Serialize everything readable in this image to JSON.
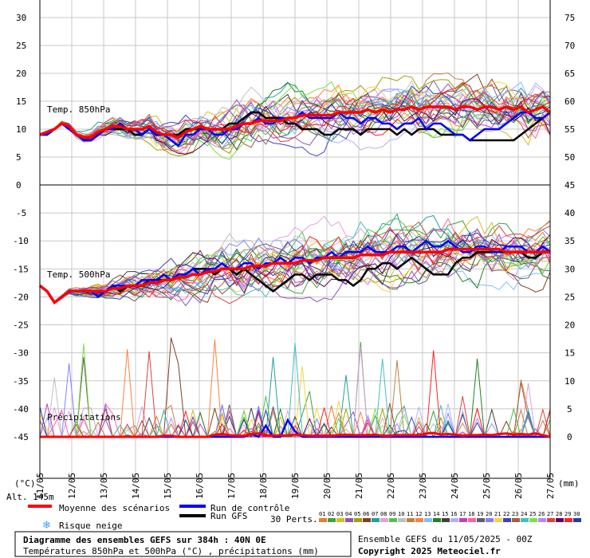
{
  "chart_data": {
    "type": "line",
    "title": "Diagramme des ensembles GEFS sur 384h : 40N 0E",
    "subtitle": "Températures 850hPa et 500hPa (°C) , précipitations (mm)",
    "run_label": "Ensemble GEFS du 11/05/2025 - 00Z",
    "copyright": "Copyright 2025 Meteociel.fr",
    "altitude_label": "Alt. 145m",
    "left_unit": "(°C)",
    "right_unit": "(mm)",
    "panel_labels": {
      "t850": "Temp. 850hPa",
      "t500": "Temp. 500hPa",
      "precip": "Précipitations"
    },
    "x_labels": [
      "11/05",
      "12/05",
      "13/05",
      "14/05",
      "15/05",
      "16/05",
      "17/05",
      "18/05",
      "19/05",
      "20/05",
      "21/05",
      "22/05",
      "23/05",
      "24/05",
      "25/05",
      "26/05",
      "27/05"
    ],
    "top_panel": {
      "left_ticks": [
        30,
        25,
        20,
        15,
        10,
        5,
        0
      ],
      "right_ticks": [
        75,
        70,
        65,
        60,
        55,
        50,
        45
      ],
      "ylim": [
        0,
        30
      ]
    },
    "bottom_panel": {
      "left_ticks": [
        -5,
        -10,
        -15,
        -20,
        -25,
        -30,
        -35,
        -40,
        -45
      ],
      "right_ticks": [
        40,
        35,
        30,
        25,
        20,
        15,
        10,
        5,
        0
      ],
      "ylim_temp": [
        -45,
        0
      ],
      "ylim_precip": [
        0,
        45
      ]
    },
    "legend": {
      "mean": "Moyenne des scénarios",
      "control": "Run de contrôle",
      "gfs": "Run GFS",
      "snow": "Risque neige",
      "perts_label": "30 Perts.",
      "pert_ids": [
        "01",
        "02",
        "03",
        "04",
        "05",
        "06",
        "07",
        "08",
        "09",
        "10",
        "11",
        "12",
        "13",
        "14",
        "15",
        "16",
        "17",
        "18",
        "19",
        "20",
        "21",
        "22",
        "23",
        "24",
        "25",
        "26",
        "27",
        "28",
        "29",
        "30"
      ],
      "pert_colors": [
        "#e08030",
        "#40a040",
        "#d0c020",
        "#9050c0",
        "#a0a000",
        "#804020",
        "#20a0a0",
        "#e0a0e0",
        "#50c050",
        "#c0c0c0",
        "#c08040",
        "#ff8040",
        "#80c0ff",
        "#208020",
        "#404040",
        "#b0b0ff",
        "#c040c0",
        "#ff60a0",
        "#606060",
        "#8080ff",
        "#ffd040",
        "#4040c0",
        "#a06040",
        "#40c0c0",
        "#80e040",
        "#c080ff",
        "#e04040",
        "#600060",
        "#ff2020",
        "#2040a0"
      ],
      "mean_color": "#ff0000",
      "control_color": "#0000ff",
      "gfs_color": "#000000"
    },
    "series": {
      "mean_850": [
        9,
        9.5,
        10,
        11,
        10.5,
        9,
        8.5,
        8.5,
        9.5,
        10,
        10.5,
        10.5,
        10,
        10,
        10,
        10.5,
        9.5,
        9,
        9,
        8.5,
        9.5,
        10,
        10.5,
        10,
        10,
        10,
        10,
        10.5,
        11,
        11,
        11.5,
        11.5,
        11.5,
        11.5,
        12,
        12,
        12.5,
        12.5,
        12.5,
        12.5,
        12.5,
        13,
        13,
        13,
        13,
        13.5,
        13,
        13.5,
        13,
        13.5,
        13.5,
        14,
        13.5,
        14,
        14,
        14,
        14,
        13.5,
        14,
        14,
        13.5,
        14,
        14,
        13.5,
        14,
        13.5,
        14,
        13,
        13.5,
        14,
        13
      ],
      "control_850": [
        9,
        9,
        10,
        11,
        10,
        9,
        8,
        8,
        9,
        10,
        10,
        11,
        10,
        10,
        9,
        10,
        9,
        9,
        8,
        7,
        9,
        9,
        10,
        10,
        9,
        9,
        10,
        10,
        11,
        11,
        12,
        11,
        11,
        12,
        12,
        12,
        13,
        12,
        12,
        12,
        12,
        13,
        12,
        12,
        11,
        12,
        12,
        11,
        11,
        10,
        11,
        11,
        12,
        10,
        11,
        11,
        10,
        9,
        9,
        8,
        9,
        10,
        10,
        10,
        11,
        12,
        13,
        13,
        12,
        12,
        13
      ],
      "gfs_850": [
        9,
        9,
        10,
        11,
        10,
        9,
        8,
        8,
        9,
        10,
        10,
        10,
        10,
        9,
        9,
        10,
        9,
        9,
        9,
        9,
        10,
        10,
        10,
        10,
        10,
        10,
        11,
        11,
        12,
        13,
        13,
        12,
        12,
        12,
        11,
        11,
        10,
        10,
        10,
        9,
        9,
        10,
        10,
        10,
        9,
        10,
        10,
        10,
        10,
        9,
        10,
        9,
        10,
        10,
        10,
        9,
        9,
        9,
        9,
        8,
        8,
        8,
        8,
        8,
        8,
        8,
        9,
        10,
        11,
        12,
        13
      ],
      "mean_500": [
        -18,
        -19,
        -21,
        -20,
        -19,
        -19,
        -19,
        -19,
        -19,
        -19,
        -18.5,
        -18.5,
        -18,
        -18,
        -18,
        -17.5,
        -17.5,
        -17,
        -17,
        -16.5,
        -16.5,
        -16,
        -16,
        -15.5,
        -15.5,
        -15,
        -15,
        -15,
        -15,
        -14.5,
        -14.5,
        -14.5,
        -14,
        -14,
        -14,
        -14,
        -13.5,
        -13.5,
        -13.5,
        -13,
        -13,
        -13,
        -13,
        -13,
        -12.5,
        -12.5,
        -12.5,
        -12.5,
        -12,
        -12,
        -12,
        -12,
        -12,
        -12,
        -12,
        -12,
        -11.5,
        -11.5,
        -11.5,
        -11.5,
        -11.5,
        -11.5,
        -11.5,
        -11.5,
        -12,
        -12,
        -12,
        -12,
        -12,
        -12,
        -12
      ],
      "control_500": [
        -18,
        -19,
        -21,
        -20,
        -19,
        -19,
        -19,
        -19,
        -20,
        -19,
        -18,
        -18,
        -18,
        -18,
        -17,
        -17,
        -17,
        -16,
        -17,
        -16,
        -16,
        -15,
        -16,
        -15,
        -15,
        -14,
        -15,
        -15,
        -14,
        -14,
        -15,
        -14,
        -14,
        -13,
        -14,
        -13,
        -13,
        -14,
        -13,
        -13,
        -12,
        -13,
        -12,
        -12,
        -12,
        -11,
        -12,
        -12,
        -12,
        -11,
        -11,
        -12,
        -11,
        -10,
        -11,
        -11,
        -10,
        -11,
        -12,
        -12,
        -11,
        -11,
        -12,
        -12,
        -11,
        -11,
        -11,
        -12,
        -12,
        -11,
        -12
      ],
      "gfs_500": [
        -18,
        -19,
        -21,
        -20,
        -19,
        -19,
        -19,
        -19,
        -19,
        -19,
        -18,
        -19,
        -18,
        -18,
        -18,
        -17,
        -17,
        -17,
        -17,
        -16,
        -16,
        -15,
        -15,
        -15,
        -16,
        -15,
        -15,
        -16,
        -15,
        -16,
        -17,
        -18,
        -19,
        -18,
        -17,
        -16,
        -16,
        -17,
        -16,
        -16,
        -16,
        -17,
        -17,
        -18,
        -17,
        -15,
        -15,
        -14,
        -14,
        -15,
        -14,
        -13,
        -14,
        -15,
        -16,
        -16,
        -16,
        -14,
        -13,
        -13,
        -12,
        -12,
        -12,
        -12,
        -12,
        -12,
        -12,
        -13,
        -13,
        -12,
        -12
      ],
      "mean_precip": [
        0,
        0,
        0,
        0,
        0,
        0,
        0,
        0,
        0,
        0,
        0,
        0,
        0,
        0,
        0,
        0,
        0,
        0.2,
        0.2,
        0,
        0,
        0,
        0,
        0,
        0.4,
        0.5,
        0.3,
        0.2,
        0.2,
        0.5,
        0.6,
        0.3,
        0.2,
        0.3,
        0.2,
        0.4,
        0.3,
        0.2,
        0.2,
        0.2,
        0.2,
        0.3,
        0.4,
        0.3,
        0.3,
        0.3,
        0.4,
        0.2,
        0.2,
        0.3,
        0.3,
        0.3,
        0.3,
        0.6,
        0.7,
        0.4,
        0.5,
        0.4,
        0.2,
        0.3,
        0.3,
        0.4,
        0.3,
        0.5,
        0.6,
        0.4,
        0.5,
        0.4,
        0.6,
        0.3,
        0
      ],
      "control_precip": [
        0,
        0,
        0,
        0,
        0,
        0,
        0,
        0,
        0,
        0,
        0,
        0,
        0,
        0,
        0,
        0,
        0,
        0,
        0,
        0,
        0,
        0,
        0,
        0,
        0,
        0,
        0,
        0,
        0,
        0.5,
        0,
        2,
        0,
        0,
        3,
        1,
        0,
        0,
        0,
        0,
        0,
        0,
        0,
        0,
        0,
        0,
        0,
        0,
        0,
        0,
        0,
        0,
        0,
        0,
        0,
        0,
        0,
        0,
        0,
        0,
        0,
        0,
        0,
        0,
        0,
        0,
        0,
        0,
        0,
        0,
        0
      ]
    }
  }
}
